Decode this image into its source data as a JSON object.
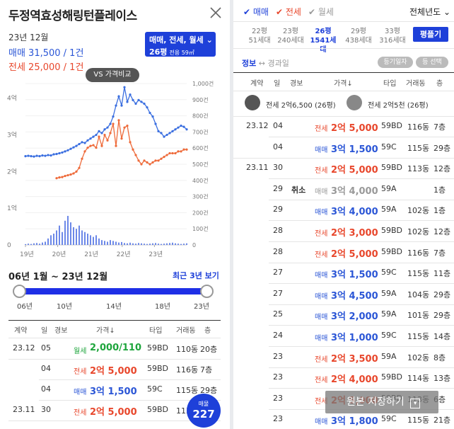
{
  "left": {
    "title": "두정역효성해링턴플레이스",
    "period": "23년 12월",
    "price_sale": "매매 31,500 / 1건",
    "price_jeonse": "전세 25,000 / 1건",
    "filter_line1": "매매, 전세, 월세",
    "filter_line2": "26평",
    "filter_area": "전용 59㎡",
    "vs_label": "VS 가격비교",
    "range_title": "06년 1월 ~ 23년 12월",
    "range_link": "최근 3년 보기",
    "slider_labels": [
      "06년",
      "10년",
      "14년",
      "18년",
      "23년"
    ],
    "headers": [
      "계약",
      "일",
      "경보",
      "가격↓",
      "타입",
      "거래동",
      "층"
    ],
    "rows": [
      {
        "month": "23.12",
        "day": "05",
        "kind": "월세",
        "price": "2,000/110",
        "type": "59BD",
        "dong": "110동",
        "floor": "20층",
        "cls": "monthly"
      },
      {
        "month": "",
        "day": "04",
        "kind": "전세",
        "price": "2억 5,000",
        "type": "59BD",
        "dong": "116동",
        "floor": "7층",
        "cls": "jeonse"
      },
      {
        "month": "",
        "day": "04",
        "kind": "매매",
        "price": "3억 1,500",
        "type": "59C",
        "dong": "115동",
        "floor": "29층",
        "cls": "sale"
      },
      {
        "month": "23.11",
        "day": "30",
        "kind": "전세",
        "price": "2억 5,000",
        "type": "59BD",
        "dong": "113동",
        "floor": "",
        "cls": "jeonse"
      }
    ],
    "badge_title": "매물",
    "badge_count": "227"
  },
  "chart_data": {
    "type": "line",
    "x_ticks": [
      "19년",
      "20년",
      "21년",
      "22년",
      "23년"
    ],
    "y_left_ticks": [
      "4억",
      "3억",
      "2억",
      "1억",
      "0"
    ],
    "y_right_ticks": [
      "1,000건",
      "900건",
      "800건",
      "700건",
      "600건",
      "500건",
      "400건",
      "300건",
      "200건",
      "100건",
      "0"
    ],
    "ylim_price": [
      0,
      4.4
    ],
    "ylim_volume": [
      0,
      1000
    ],
    "series": [
      {
        "name": "매매",
        "color": "#3b6fe0",
        "values": [
          2.42,
          2.43,
          2.42,
          2.41,
          2.43,
          2.42,
          2.44,
          2.43,
          2.45,
          2.44,
          2.47,
          2.48,
          2.5,
          2.52,
          2.55,
          2.58,
          2.62,
          2.66,
          2.7,
          2.75,
          2.8,
          2.78,
          2.85,
          2.9,
          2.95,
          3.0,
          3.1,
          3.05,
          3.15,
          3.2,
          3.3,
          3.5,
          3.8,
          4.05,
          3.8,
          4.3,
          3.9,
          4.1,
          3.95,
          3.85,
          3.95,
          3.9,
          3.85,
          3.75,
          3.6,
          3.5,
          3.3,
          3.1,
          3.05,
          2.95,
          3.0,
          3.05,
          3.1,
          3.15,
          3.2,
          3.25,
          3.22,
          3.15
        ]
      },
      {
        "name": "전세",
        "color": "#ee6b3b",
        "values": [
          null,
          null,
          null,
          null,
          null,
          null,
          null,
          null,
          null,
          null,
          null,
          1.82,
          1.84,
          1.85,
          1.88,
          1.9,
          1.92,
          1.95,
          2.0,
          2.1,
          2.35,
          2.55,
          2.65,
          2.7,
          2.72,
          2.65,
          2.95,
          2.7,
          3.0,
          2.85,
          3.05,
          3.3,
          2.7,
          3.4,
          2.9,
          3.2,
          3.25,
          2.8,
          2.6,
          2.45,
          2.3,
          2.2,
          2.3,
          2.25,
          2.2,
          2.25,
          2.3,
          2.3,
          2.35,
          2.4,
          2.45,
          2.5,
          2.5,
          2.5,
          2.55,
          2.55,
          2.6,
          2.6
        ]
      }
    ],
    "volume_color": "#6c88e8",
    "volume": [
      5,
      8,
      6,
      10,
      12,
      8,
      15,
      20,
      40,
      60,
      70,
      90,
      120,
      80,
      150,
      180,
      140,
      110,
      100,
      120,
      90,
      80,
      70,
      60,
      50,
      60,
      40,
      30,
      25,
      20,
      30,
      25,
      20,
      15,
      18,
      12,
      10,
      14,
      10,
      8,
      12,
      10,
      8,
      6,
      8,
      10,
      12,
      8,
      6,
      8,
      10,
      12,
      14,
      10,
      8,
      6,
      8,
      10
    ]
  },
  "right": {
    "tabs": [
      {
        "label": "매매",
        "checked": true,
        "color": "#1e40d9"
      },
      {
        "label": "전세",
        "checked": true,
        "color": "#e8472c"
      },
      {
        "label": "월세",
        "checked": true,
        "color": "#999"
      }
    ],
    "year_select": "전체년도",
    "areas": [
      {
        "name": "22평",
        "count": "51세대"
      },
      {
        "name": "23평",
        "count": "240세대"
      },
      {
        "name": "26평",
        "count": "1541세대"
      },
      {
        "name": "29평",
        "count": "438세대"
      },
      {
        "name": "33평",
        "count": "316세대"
      }
    ],
    "pyeong_button": "평플기",
    "info_label": "정보",
    "arrow": "↔",
    "info_b": "경과일",
    "pill1": "등기일자",
    "pill2": "등 선택",
    "headers": [
      "계약",
      "일",
      "경보",
      "가격↓",
      "타입",
      "거래동",
      "층"
    ],
    "broker1": "전세 2억6,500 (26평)",
    "broker2": "전세 2억5천 (26평)",
    "rows": [
      {
        "month": "23.12",
        "day": "04",
        "note": "",
        "kind": "전세",
        "price": "2억 5,000",
        "type": "59BD",
        "dong": "116동",
        "floor": "7층",
        "cls": "jeonse"
      },
      {
        "month": "",
        "day": "04",
        "note": "",
        "kind": "매매",
        "price": "3억 1,500",
        "type": "59C",
        "dong": "115동",
        "floor": "29층",
        "cls": "sale"
      },
      {
        "month": "23.11",
        "day": "30",
        "note": "",
        "kind": "전세",
        "price": "2억 5,000",
        "type": "59BD",
        "dong": "113동",
        "floor": "12층",
        "cls": "jeonse"
      },
      {
        "month": "",
        "day": "29",
        "note": "취소",
        "kind": "매매",
        "price": "3억 4,000",
        "type": "59A",
        "dong": "",
        "floor": "1층",
        "cls": "cancel"
      },
      {
        "month": "",
        "day": "29",
        "note": "",
        "kind": "매매",
        "price": "3억 4,000",
        "type": "59A",
        "dong": "102동",
        "floor": "1층",
        "cls": "sale"
      },
      {
        "month": "",
        "day": "28",
        "note": "",
        "kind": "전세",
        "price": "2억 3,000",
        "type": "59BD",
        "dong": "102동",
        "floor": "12층",
        "cls": "jeonse"
      },
      {
        "month": "",
        "day": "28",
        "note": "",
        "kind": "전세",
        "price": "2억 5,000",
        "type": "59BD",
        "dong": "116동",
        "floor": "7층",
        "cls": "jeonse"
      },
      {
        "month": "",
        "day": "27",
        "note": "",
        "kind": "매매",
        "price": "3억 1,500",
        "type": "59C",
        "dong": "115동",
        "floor": "11층",
        "cls": "sale"
      },
      {
        "month": "",
        "day": "27",
        "note": "",
        "kind": "매매",
        "price": "3억 4,500",
        "type": "59A",
        "dong": "104동",
        "floor": "29층",
        "cls": "sale"
      },
      {
        "month": "",
        "day": "25",
        "note": "",
        "kind": "매매",
        "price": "3억 2,000",
        "type": "59A",
        "dong": "101동",
        "floor": "29층",
        "cls": "sale"
      },
      {
        "month": "",
        "day": "24",
        "note": "",
        "kind": "매매",
        "price": "3억 1,000",
        "type": "59C",
        "dong": "115동",
        "floor": "14층",
        "cls": "sale"
      },
      {
        "month": "",
        "day": "23",
        "note": "",
        "kind": "전세",
        "price": "2억 3,500",
        "type": "59A",
        "dong": "102동",
        "floor": "8층",
        "cls": "jeonse"
      },
      {
        "month": "",
        "day": "23",
        "note": "",
        "kind": "전세",
        "price": "2억 4,000",
        "type": "59BD",
        "dong": "114동",
        "floor": "13층",
        "cls": "jeonse"
      },
      {
        "month": "",
        "day": "23",
        "note": "",
        "kind": "전세",
        "price": "2억 5,000",
        "type": "59BD",
        "dong": "113동",
        "floor": "6층",
        "cls": "jeonse"
      },
      {
        "month": "",
        "day": "23",
        "note": "",
        "kind": "매매",
        "price": "3억 1,800",
        "type": "59C",
        "dong": "115동",
        "floor": "21층",
        "cls": "sale"
      }
    ],
    "save_label": "원본 저장하기"
  }
}
